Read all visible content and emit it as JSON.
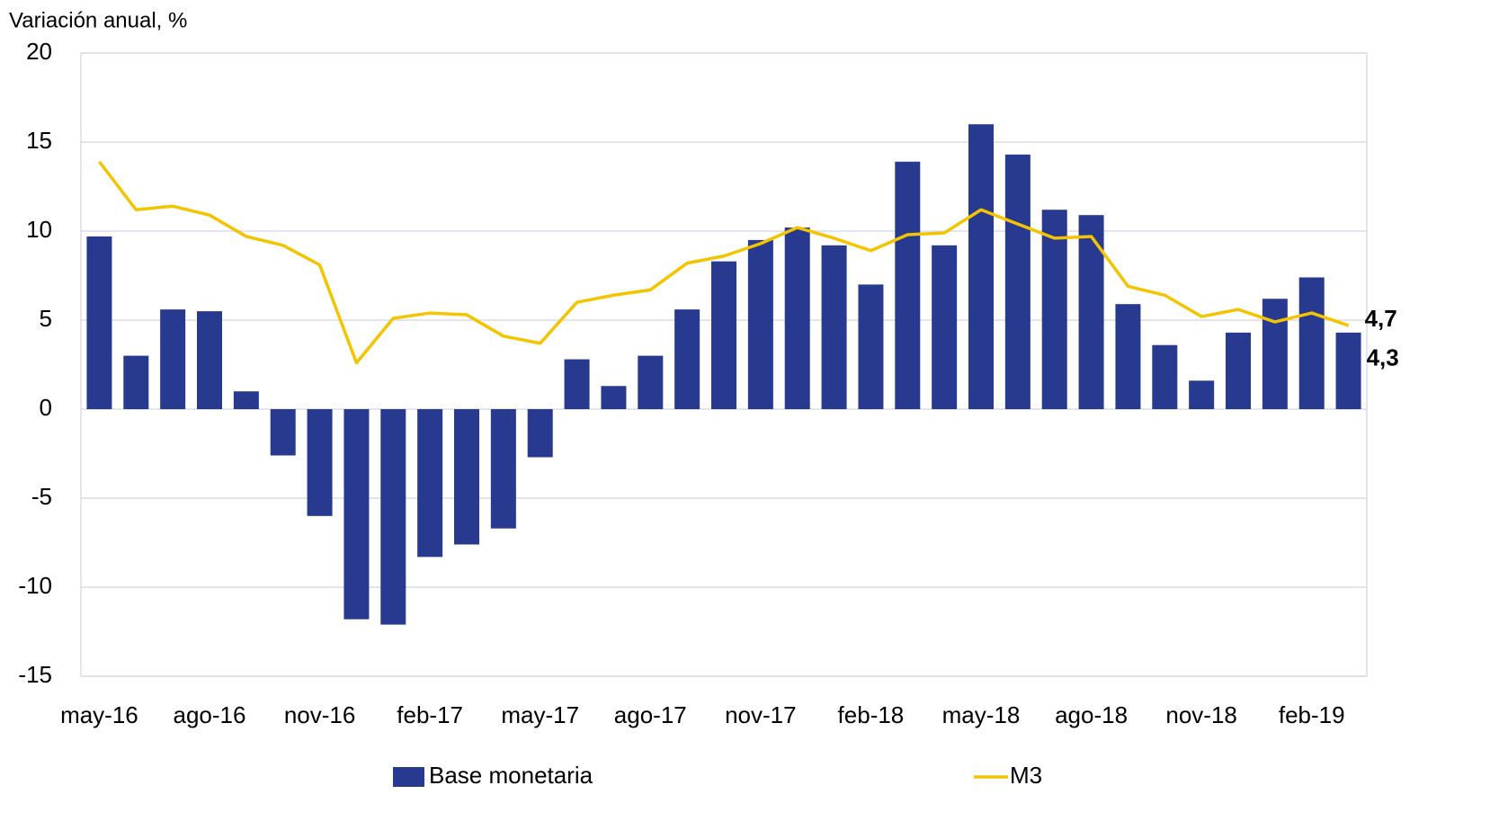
{
  "chart_data": {
    "type": "bar_line",
    "y_label": "Variación anual, %",
    "categories": [
      "may-16",
      null,
      null,
      "ago-16",
      null,
      null,
      "nov-16",
      null,
      null,
      "feb-17",
      null,
      null,
      "may-17",
      null,
      null,
      "ago-17",
      null,
      null,
      "nov-17",
      null,
      null,
      "feb-18",
      null,
      null,
      "may-18",
      null,
      null,
      "ago-18",
      null,
      null,
      "nov-18",
      null,
      null,
      "feb-19",
      null
    ],
    "series": [
      {
        "name": "Base monetaria",
        "type": "bar",
        "color": "#283a8f",
        "values": [
          9.7,
          3.0,
          5.6,
          5.5,
          1.0,
          -2.6,
          -6.0,
          -11.8,
          -12.1,
          -8.3,
          -7.6,
          -6.7,
          -2.7,
          2.8,
          1.3,
          3.0,
          5.6,
          8.3,
          9.5,
          10.2,
          9.2,
          7.0,
          13.9,
          9.2,
          16.0,
          14.3,
          11.2,
          10.9,
          5.9,
          3.6,
          1.6,
          4.3,
          6.2,
          7.4,
          4.3
        ],
        "value_labels": [
          null,
          null,
          null,
          null,
          null,
          null,
          null,
          null,
          null,
          null,
          null,
          null,
          null,
          null,
          null,
          null,
          null,
          null,
          null,
          null,
          null,
          null,
          null,
          null,
          null,
          null,
          null,
          null,
          null,
          null,
          null,
          null,
          null,
          null,
          "4,3"
        ]
      },
      {
        "name": "M3",
        "type": "line",
        "color": "#f5c400",
        "values": [
          13.9,
          11.2,
          11.4,
          10.9,
          9.7,
          9.2,
          8.1,
          2.6,
          5.1,
          5.4,
          5.3,
          4.1,
          3.7,
          6.0,
          6.4,
          6.7,
          8.2,
          8.6,
          9.3,
          10.2,
          9.6,
          8.9,
          9.8,
          9.9,
          11.2,
          10.4,
          9.6,
          9.7,
          6.9,
          6.4,
          5.2,
          5.6,
          4.9,
          5.4,
          4.7
        ],
        "value_labels": [
          null,
          null,
          null,
          null,
          null,
          null,
          null,
          null,
          null,
          null,
          null,
          null,
          null,
          null,
          null,
          null,
          null,
          null,
          null,
          null,
          null,
          null,
          null,
          null,
          null,
          null,
          null,
          null,
          null,
          null,
          null,
          null,
          null,
          null,
          "4,7"
        ]
      }
    ],
    "ylim": [
      -15,
      20
    ],
    "yticks": [
      -15,
      -10,
      -5,
      0,
      5,
      10,
      15,
      20
    ],
    "grid": true,
    "legend": "bottom"
  }
}
